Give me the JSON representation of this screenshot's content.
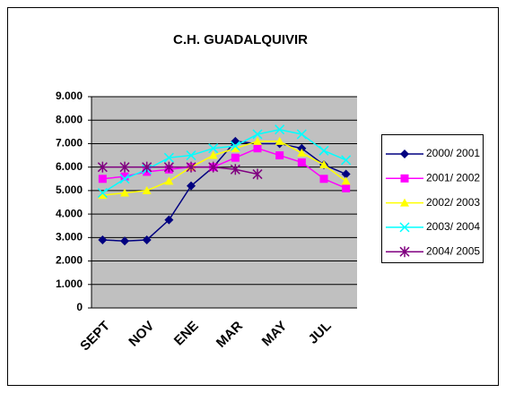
{
  "chart_data": {
    "type": "line",
    "title": "C.H. GUADALQUIVIR",
    "categories": [
      "SEPT",
      null,
      "NOV",
      null,
      "ENE",
      null,
      "MAR",
      null,
      "MAY",
      null,
      "JUL",
      null
    ],
    "ylim": [
      0,
      9000
    ],
    "yticks": [
      0,
      {
        "value": 1000,
        "label": "1.000"
      },
      {
        "value": 2000,
        "label": "2.000"
      },
      {
        "value": 3000,
        "label": "3.000"
      },
      {
        "value": 4000,
        "label": "4.000"
      },
      {
        "value": 5000,
        "label": "5.000"
      },
      {
        "value": 6000,
        "label": "6.000"
      },
      {
        "value": 7000,
        "label": "7.000"
      },
      {
        "value": 8000,
        "label": "8.000"
      },
      {
        "value": 9000,
        "label": "9.000"
      }
    ],
    "grid": true,
    "legend": "right",
    "series": [
      {
        "name": "2000/ 2001",
        "color": "#000080",
        "marker": "diamond",
        "values": [
          2900,
          2850,
          2900,
          3750,
          5200,
          6000,
          7100,
          7000,
          7000,
          6800,
          6100,
          5700
        ]
      },
      {
        "name": "2001/ 2002",
        "color": "#ff00ff",
        "marker": "square",
        "values": [
          5500,
          5600,
          5800,
          5900,
          6000,
          6000,
          6400,
          6800,
          6500,
          6200,
          5500,
          5100
        ]
      },
      {
        "name": "2002/ 2003",
        "color": "#ffff00",
        "marker": "triangle",
        "values": [
          4800,
          4900,
          5000,
          5400,
          6000,
          6500,
          6800,
          7100,
          7100,
          6600,
          6100,
          5400
        ]
      },
      {
        "name": "2003/ 2004",
        "color": "#00ffff",
        "marker": "x",
        "values": [
          4900,
          5500,
          5900,
          6400,
          6500,
          6800,
          6900,
          7400,
          7600,
          7400,
          6700,
          6300
        ]
      },
      {
        "name": "2004/ 2005",
        "color": "#800080",
        "marker": "star",
        "values": [
          6000,
          6000,
          6000,
          6000,
          6000,
          6000,
          5900,
          5700,
          null,
          null,
          null,
          null
        ]
      }
    ]
  }
}
